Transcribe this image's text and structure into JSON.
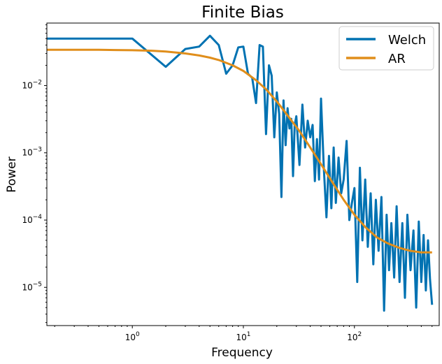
{
  "chart_data": {
    "type": "line",
    "title": "Finite Bias",
    "xlabel": "Frequency",
    "ylabel": "Power",
    "xscale": "log",
    "yscale": "log",
    "xlim": [
      0.17,
      580
    ],
    "ylim": [
      2.7e-06,
      0.085
    ],
    "grid": false,
    "legend": "top-right",
    "xticks": [
      {
        "value": 1,
        "base": "10",
        "exp": "0"
      },
      {
        "value": 10,
        "base": "10",
        "exp": "1"
      },
      {
        "value": 100,
        "base": "10",
        "exp": "2"
      }
    ],
    "yticks": [
      {
        "value": 1e-05,
        "base": "10",
        "exp": "−5"
      },
      {
        "value": 0.0001,
        "base": "10",
        "exp": "−4"
      },
      {
        "value": 0.001,
        "base": "10",
        "exp": "−3"
      },
      {
        "value": 0.01,
        "base": "10",
        "exp": "−2"
      }
    ],
    "series": [
      {
        "name": "Welch",
        "color": "#0072b2",
        "x": [
          0.17,
          1,
          2,
          3,
          4,
          5,
          6,
          7,
          8,
          9,
          10,
          11,
          12,
          13,
          14,
          15,
          16,
          17,
          18,
          19,
          20,
          21,
          22,
          23,
          24,
          25,
          26,
          27,
          28,
          29,
          30,
          32,
          34,
          36,
          38,
          40,
          42,
          44,
          46,
          48,
          50,
          53,
          56,
          59,
          62,
          65,
          68,
          72,
          76,
          80,
          85,
          90,
          95,
          100,
          106,
          112,
          118,
          125,
          132,
          140,
          148,
          156,
          165,
          175,
          185,
          195,
          205,
          215,
          228,
          240,
          255,
          270,
          285,
          300,
          320,
          340,
          360,
          380,
          400,
          420,
          440,
          460,
          480,
          500
        ],
        "values": [
          0.05,
          0.05,
          0.019,
          0.035,
          0.038,
          0.055,
          0.04,
          0.015,
          0.02,
          0.037,
          0.038,
          0.015,
          0.013,
          0.0055,
          0.04,
          0.038,
          0.0019,
          0.02,
          0.014,
          0.0017,
          0.0079,
          0.0038,
          0.00022,
          0.006,
          0.0013,
          0.0046,
          0.0023,
          0.0032,
          0.00045,
          0.0026,
          0.0035,
          0.00066,
          0.0052,
          0.0012,
          0.003,
          0.0017,
          0.0026,
          0.00038,
          0.0016,
          0.0004,
          0.0064,
          0.0006,
          0.00011,
          0.0009,
          0.00015,
          0.0012,
          0.00018,
          0.00085,
          0.00025,
          0.0004,
          0.0015,
          0.0001,
          0.00018,
          0.0003,
          1.2e-05,
          0.0006,
          5e-05,
          0.0004,
          4e-05,
          0.00025,
          2.2e-05,
          0.0002,
          3.5e-05,
          0.00022,
          4.5e-06,
          0.00012,
          1.8e-05,
          9e-05,
          1.4e-05,
          0.00016,
          1.2e-05,
          9e-05,
          7e-06,
          0.00012,
          1.8e-05,
          7e-05,
          5e-06,
          9.5e-05,
          1.2e-05,
          6e-05,
          9e-06,
          5e-05,
          1.3e-05,
          5.5e-06
        ]
      },
      {
        "name": "AR",
        "color": "#e08e1b",
        "x": [
          0.17,
          0.3,
          0.5,
          0.7,
          1,
          1.5,
          2,
          3,
          4,
          5,
          6,
          8,
          10,
          13,
          16,
          20,
          25,
          32,
          40,
          50,
          63,
          80,
          100,
          126,
          160,
          200,
          250,
          316,
          400,
          500
        ],
        "values": [
          0.034,
          0.034,
          0.034,
          0.0338,
          0.0335,
          0.033,
          0.032,
          0.03,
          0.028,
          0.026,
          0.024,
          0.02,
          0.0165,
          0.012,
          0.0088,
          0.0058,
          0.0036,
          0.0021,
          0.0012,
          0.00068,
          0.00037,
          0.0002,
          0.00012,
          7.8e-05,
          5.5e-05,
          4.5e-05,
          3.9e-05,
          3.5e-05,
          3.3e-05,
          3.3e-05
        ]
      }
    ]
  }
}
